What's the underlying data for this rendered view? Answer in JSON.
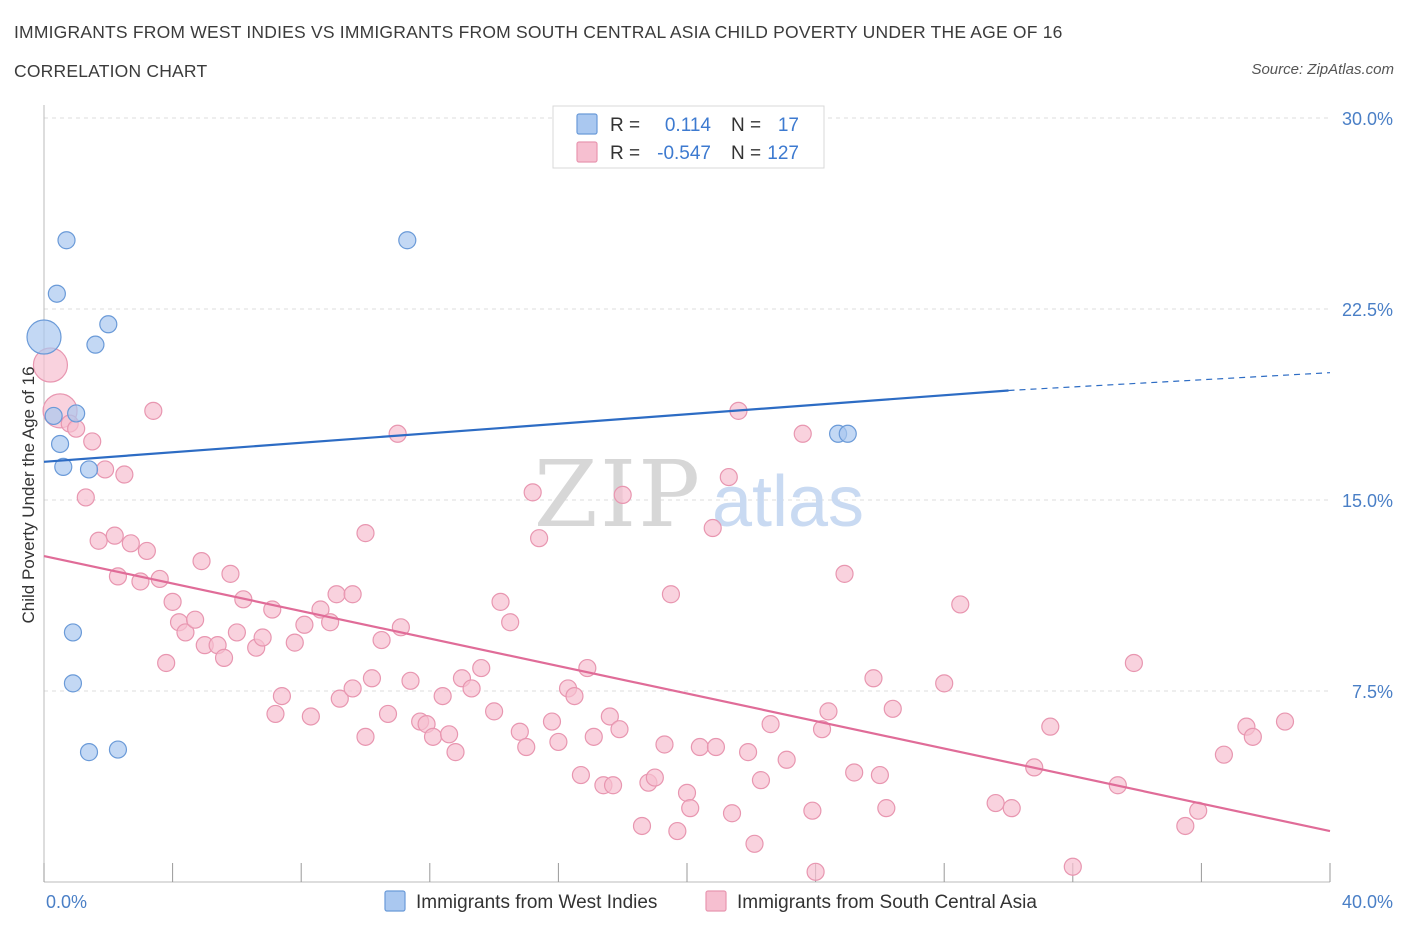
{
  "header": {
    "title": "IMMIGRANTS FROM WEST INDIES VS IMMIGRANTS FROM SOUTH CENTRAL ASIA CHILD POVERTY UNDER THE AGE OF 16",
    "subtitle": "CORRELATION CHART",
    "source": "Source: ZipAtlas.com"
  },
  "watermark": {
    "zip": "ZIP",
    "atlas": "atlas"
  },
  "legend": {
    "r_label": "R =",
    "n_label": "N =",
    "series": [
      {
        "r": "0.114",
        "n": "17"
      },
      {
        "r": "-0.547",
        "n": "127"
      }
    ]
  },
  "colors": {
    "west_indies_fill": "#aac8f0",
    "west_indies_stroke": "#6a9ad8",
    "west_indies_line": "#2d6cc4",
    "sca_fill": "#f6bfd0",
    "sca_stroke": "#e896b0",
    "sca_line": "#e06c98",
    "tick_text": "#4a7fc6",
    "grid": "#dddddd"
  },
  "chart_data": {
    "type": "scatter",
    "title": "IMMIGRANTS FROM WEST INDIES VS IMMIGRANTS FROM SOUTH CENTRAL ASIA CHILD POVERTY UNDER THE AGE OF 16",
    "subtitle": "CORRELATION CHART",
    "xlabel": "",
    "ylabel": "Child Poverty Under the Age of 16",
    "xlim": [
      0,
      40
    ],
    "ylim": [
      0,
      30
    ],
    "x_tick_labels": [
      "0.0%",
      "40.0%"
    ],
    "y_ticks": [
      7.5,
      15.0,
      22.5,
      30.0
    ],
    "y_tick_labels": [
      "7.5%",
      "15.0%",
      "22.5%",
      "30.0%"
    ],
    "grid": true,
    "legend_position": "top-center",
    "series": [
      {
        "name": "Immigrants from West Indies",
        "r": 0.114,
        "n": 17,
        "trend": {
          "x": [
            0,
            30
          ],
          "y": [
            16.5,
            19.3
          ],
          "dashed_extension_to_x": 40,
          "dashed_extension_y": 20.0
        },
        "points": [
          {
            "x": 0.0,
            "y": 21.4,
            "s": 2
          },
          {
            "x": 0.7,
            "y": 25.2,
            "s": 1
          },
          {
            "x": 0.4,
            "y": 23.1,
            "s": 1
          },
          {
            "x": 2.0,
            "y": 21.9,
            "s": 1
          },
          {
            "x": 1.6,
            "y": 21.1,
            "s": 1
          },
          {
            "x": 0.3,
            "y": 18.3,
            "s": 1
          },
          {
            "x": 1.0,
            "y": 18.4,
            "s": 1
          },
          {
            "x": 0.5,
            "y": 17.2,
            "s": 1
          },
          {
            "x": 0.6,
            "y": 16.3,
            "s": 1
          },
          {
            "x": 1.4,
            "y": 16.2,
            "s": 1
          },
          {
            "x": 11.3,
            "y": 25.2,
            "s": 1
          },
          {
            "x": 24.7,
            "y": 17.6,
            "s": 1
          },
          {
            "x": 25.0,
            "y": 17.6,
            "s": 1
          },
          {
            "x": 0.9,
            "y": 9.8,
            "s": 1
          },
          {
            "x": 0.9,
            "y": 7.8,
            "s": 1
          },
          {
            "x": 1.4,
            "y": 5.1,
            "s": 1
          },
          {
            "x": 2.3,
            "y": 5.2,
            "s": 1
          }
        ]
      },
      {
        "name": "Immigrants from South Central Asia",
        "r": -0.547,
        "n": 127,
        "trend": {
          "x": [
            0,
            40
          ],
          "y": [
            12.8,
            2.0
          ]
        },
        "points": [
          {
            "x": 0.2,
            "y": 20.3,
            "s": 2
          },
          {
            "x": 0.5,
            "y": 18.5,
            "s": 2
          },
          {
            "x": 0.8,
            "y": 18.0,
            "s": 1
          },
          {
            "x": 1.0,
            "y": 17.8,
            "s": 1
          },
          {
            "x": 1.5,
            "y": 17.3,
            "s": 1
          },
          {
            "x": 3.4,
            "y": 18.5,
            "s": 1
          },
          {
            "x": 1.9,
            "y": 16.2,
            "s": 1
          },
          {
            "x": 2.5,
            "y": 16.0,
            "s": 1
          },
          {
            "x": 1.3,
            "y": 15.1,
            "s": 1
          },
          {
            "x": 1.7,
            "y": 13.4,
            "s": 1
          },
          {
            "x": 2.2,
            "y": 13.6,
            "s": 1
          },
          {
            "x": 2.7,
            "y": 13.3,
            "s": 1
          },
          {
            "x": 3.2,
            "y": 13.0,
            "s": 1
          },
          {
            "x": 2.3,
            "y": 12.0,
            "s": 1
          },
          {
            "x": 3.0,
            "y": 11.8,
            "s": 1
          },
          {
            "x": 3.6,
            "y": 11.9,
            "s": 1
          },
          {
            "x": 4.0,
            "y": 11.0,
            "s": 1
          },
          {
            "x": 4.2,
            "y": 10.2,
            "s": 1
          },
          {
            "x": 4.4,
            "y": 9.8,
            "s": 1
          },
          {
            "x": 4.7,
            "y": 10.3,
            "s": 1
          },
          {
            "x": 5.0,
            "y": 9.3,
            "s": 1
          },
          {
            "x": 5.4,
            "y": 9.3,
            "s": 1
          },
          {
            "x": 4.9,
            "y": 12.6,
            "s": 1
          },
          {
            "x": 5.8,
            "y": 12.1,
            "s": 1
          },
          {
            "x": 6.2,
            "y": 11.1,
            "s": 1
          },
          {
            "x": 6.0,
            "y": 9.8,
            "s": 1
          },
          {
            "x": 6.6,
            "y": 9.2,
            "s": 1
          },
          {
            "x": 6.8,
            "y": 9.6,
            "s": 1
          },
          {
            "x": 7.1,
            "y": 10.7,
            "s": 1
          },
          {
            "x": 5.6,
            "y": 8.8,
            "s": 1
          },
          {
            "x": 3.8,
            "y": 8.6,
            "s": 1
          },
          {
            "x": 7.8,
            "y": 9.4,
            "s": 1
          },
          {
            "x": 8.1,
            "y": 10.1,
            "s": 1
          },
          {
            "x": 8.6,
            "y": 10.7,
            "s": 1
          },
          {
            "x": 8.9,
            "y": 10.2,
            "s": 1
          },
          {
            "x": 9.1,
            "y": 11.3,
            "s": 1
          },
          {
            "x": 9.6,
            "y": 11.3,
            "s": 1
          },
          {
            "x": 7.4,
            "y": 7.3,
            "s": 1
          },
          {
            "x": 7.2,
            "y": 6.6,
            "s": 1
          },
          {
            "x": 8.3,
            "y": 6.5,
            "s": 1
          },
          {
            "x": 9.2,
            "y": 7.2,
            "s": 1
          },
          {
            "x": 9.6,
            "y": 7.6,
            "s": 1
          },
          {
            "x": 10.2,
            "y": 8.0,
            "s": 1
          },
          {
            "x": 10.5,
            "y": 9.5,
            "s": 1
          },
          {
            "x": 11.1,
            "y": 10.0,
            "s": 1
          },
          {
            "x": 11.4,
            "y": 7.9,
            "s": 1
          },
          {
            "x": 10.7,
            "y": 6.6,
            "s": 1
          },
          {
            "x": 10.0,
            "y": 5.7,
            "s": 1
          },
          {
            "x": 11.7,
            "y": 6.3,
            "s": 1
          },
          {
            "x": 11.9,
            "y": 6.2,
            "s": 1
          },
          {
            "x": 12.1,
            "y": 5.7,
            "s": 1
          },
          {
            "x": 12.4,
            "y": 7.3,
            "s": 1
          },
          {
            "x": 12.6,
            "y": 5.8,
            "s": 1
          },
          {
            "x": 12.8,
            "y": 5.1,
            "s": 1
          },
          {
            "x": 13.0,
            "y": 8.0,
            "s": 1
          },
          {
            "x": 13.3,
            "y": 7.6,
            "s": 1
          },
          {
            "x": 13.6,
            "y": 8.4,
            "s": 1
          },
          {
            "x": 14.0,
            "y": 6.7,
            "s": 1
          },
          {
            "x": 14.2,
            "y": 11.0,
            "s": 1
          },
          {
            "x": 14.5,
            "y": 10.2,
            "s": 1
          },
          {
            "x": 14.8,
            "y": 5.9,
            "s": 1
          },
          {
            "x": 15.0,
            "y": 5.3,
            "s": 1
          },
          {
            "x": 15.2,
            "y": 15.3,
            "s": 1
          },
          {
            "x": 15.4,
            "y": 13.5,
            "s": 1
          },
          {
            "x": 11.0,
            "y": 17.6,
            "s": 1
          },
          {
            "x": 10.0,
            "y": 13.7,
            "s": 1
          },
          {
            "x": 15.8,
            "y": 6.3,
            "s": 1
          },
          {
            "x": 16.0,
            "y": 5.5,
            "s": 1
          },
          {
            "x": 16.3,
            "y": 7.6,
            "s": 1
          },
          {
            "x": 16.5,
            "y": 7.3,
            "s": 1
          },
          {
            "x": 16.7,
            "y": 4.2,
            "s": 1
          },
          {
            "x": 16.9,
            "y": 8.4,
            "s": 1
          },
          {
            "x": 17.1,
            "y": 5.7,
            "s": 1
          },
          {
            "x": 17.4,
            "y": 3.8,
            "s": 1
          },
          {
            "x": 17.7,
            "y": 3.8,
            "s": 1
          },
          {
            "x": 17.6,
            "y": 6.5,
            "s": 1
          },
          {
            "x": 18.0,
            "y": 15.2,
            "s": 1
          },
          {
            "x": 17.9,
            "y": 6.0,
            "s": 1
          },
          {
            "x": 18.6,
            "y": 2.2,
            "s": 1
          },
          {
            "x": 18.8,
            "y": 3.9,
            "s": 1
          },
          {
            "x": 19.0,
            "y": 4.1,
            "s": 1
          },
          {
            "x": 19.3,
            "y": 5.4,
            "s": 1
          },
          {
            "x": 19.5,
            "y": 11.3,
            "s": 1
          },
          {
            "x": 19.7,
            "y": 2.0,
            "s": 1
          },
          {
            "x": 20.0,
            "y": 3.5,
            "s": 1
          },
          {
            "x": 20.1,
            "y": 2.9,
            "s": 1
          },
          {
            "x": 20.4,
            "y": 5.3,
            "s": 1
          },
          {
            "x": 20.8,
            "y": 13.9,
            "s": 1
          },
          {
            "x": 20.9,
            "y": 5.3,
            "s": 1
          },
          {
            "x": 21.3,
            "y": 15.9,
            "s": 1
          },
          {
            "x": 21.4,
            "y": 2.7,
            "s": 1
          },
          {
            "x": 21.6,
            "y": 18.5,
            "s": 1
          },
          {
            "x": 21.9,
            "y": 5.1,
            "s": 1
          },
          {
            "x": 22.1,
            "y": 1.5,
            "s": 1
          },
          {
            "x": 22.3,
            "y": 4.0,
            "s": 1
          },
          {
            "x": 22.6,
            "y": 6.2,
            "s": 1
          },
          {
            "x": 23.1,
            "y": 4.8,
            "s": 1
          },
          {
            "x": 23.6,
            "y": 17.6,
            "s": 1
          },
          {
            "x": 23.9,
            "y": 2.8,
            "s": 1
          },
          {
            "x": 24.2,
            "y": 6.0,
            "s": 1
          },
          {
            "x": 24.4,
            "y": 6.7,
            "s": 1
          },
          {
            "x": 24.0,
            "y": 0.4,
            "s": 1
          },
          {
            "x": 24.9,
            "y": 12.1,
            "s": 1
          },
          {
            "x": 25.2,
            "y": 4.3,
            "s": 1
          },
          {
            "x": 25.8,
            "y": 8.0,
            "s": 1
          },
          {
            "x": 26.0,
            "y": 4.2,
            "s": 1
          },
          {
            "x": 26.2,
            "y": 2.9,
            "s": 1
          },
          {
            "x": 26.4,
            "y": 6.8,
            "s": 1
          },
          {
            "x": 28.0,
            "y": 7.8,
            "s": 1
          },
          {
            "x": 28.5,
            "y": 10.9,
            "s": 1
          },
          {
            "x": 29.6,
            "y": 3.1,
            "s": 1
          },
          {
            "x": 30.1,
            "y": 2.9,
            "s": 1
          },
          {
            "x": 30.8,
            "y": 4.5,
            "s": 1
          },
          {
            "x": 31.3,
            "y": 6.1,
            "s": 1
          },
          {
            "x": 32.0,
            "y": 0.6,
            "s": 1
          },
          {
            "x": 33.4,
            "y": 3.8,
            "s": 1
          },
          {
            "x": 33.9,
            "y": 8.6,
            "s": 1
          },
          {
            "x": 35.5,
            "y": 2.2,
            "s": 1
          },
          {
            "x": 35.9,
            "y": 2.8,
            "s": 1
          },
          {
            "x": 36.7,
            "y": 5.0,
            "s": 1
          },
          {
            "x": 37.4,
            "y": 6.1,
            "s": 1
          },
          {
            "x": 37.6,
            "y": 5.7,
            "s": 1
          },
          {
            "x": 38.6,
            "y": 6.3,
            "s": 1
          }
        ]
      }
    ]
  }
}
